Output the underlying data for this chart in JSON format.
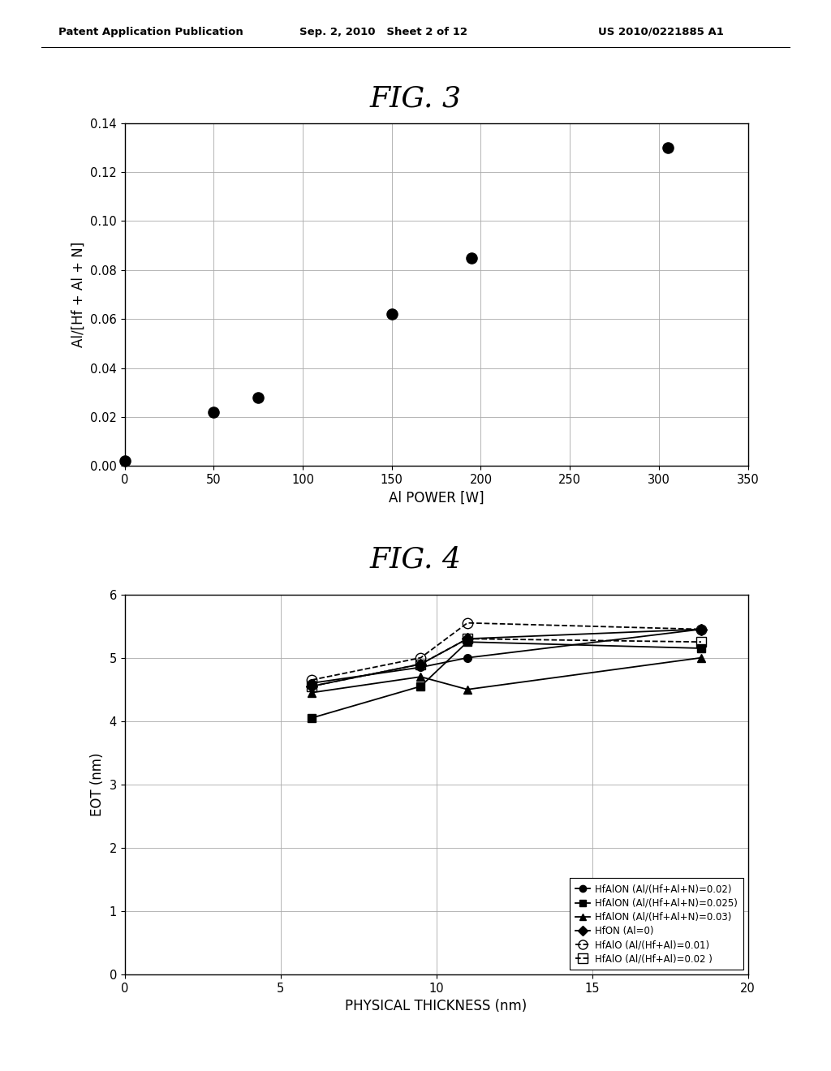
{
  "header_left": "Patent Application Publication",
  "header_center": "Sep. 2, 2010   Sheet 2 of 12",
  "header_right": "US 2010/0221885 A1",
  "fig3_title": "FIG. 3",
  "fig3_xlabel": "Al POWER [W]",
  "fig3_ylabel": "Al/[Hf + Al + N]",
  "fig3_xlim": [
    0,
    350
  ],
  "fig3_ylim": [
    0,
    0.14
  ],
  "fig3_xticks": [
    0,
    50,
    100,
    150,
    200,
    250,
    300,
    350
  ],
  "fig3_yticks": [
    0,
    0.02,
    0.04,
    0.06,
    0.08,
    0.1,
    0.12,
    0.14
  ],
  "fig3_data_x": [
    0,
    50,
    75,
    150,
    195,
    305
  ],
  "fig3_data_y": [
    0.002,
    0.022,
    0.028,
    0.062,
    0.085,
    0.13
  ],
  "fig4_title": "FIG. 4",
  "fig4_xlabel": "PHYSICAL THICKNESS (nm)",
  "fig4_ylabel": "EOT (nm)",
  "fig4_xlim": [
    0,
    20
  ],
  "fig4_ylim": [
    0,
    6
  ],
  "fig4_xticks": [
    0,
    5,
    10,
    15,
    20
  ],
  "fig4_yticks": [
    0,
    1,
    2,
    3,
    4,
    5,
    6
  ],
  "series": [
    {
      "label": "HfAlON (Al/(Hf+Al+N)=0.02)",
      "x": [
        6.0,
        9.5,
        11.0,
        18.5
      ],
      "y": [
        4.6,
        4.85,
        5.0,
        5.45
      ],
      "marker": "o",
      "fillstyle": "full",
      "linestyle": "-",
      "markersize": 7
    },
    {
      "label": "HfAlON (Al/(Hf+Al+N)=0.025)",
      "x": [
        6.0,
        9.5,
        11.0,
        18.5
      ],
      "y": [
        4.05,
        4.55,
        5.25,
        5.15
      ],
      "marker": "s",
      "fillstyle": "full",
      "linestyle": "-",
      "markersize": 7
    },
    {
      "label": "HfAlON (Al/(Hf+Al+N)=0.03)",
      "x": [
        6.0,
        9.5,
        11.0,
        18.5
      ],
      "y": [
        4.45,
        4.7,
        4.5,
        5.0
      ],
      "marker": "^",
      "fillstyle": "full",
      "linestyle": "-",
      "markersize": 7
    },
    {
      "label": "HfON (Al=0)",
      "x": [
        6.0,
        9.5,
        11.0,
        18.5
      ],
      "y": [
        4.55,
        4.9,
        5.3,
        5.45
      ],
      "marker": "D",
      "fillstyle": "full",
      "linestyle": "-",
      "markersize": 7
    },
    {
      "label": "HfAlO (Al/(Hf+Al)=0.01)",
      "x": [
        6.0,
        9.5,
        11.0,
        18.5
      ],
      "y": [
        4.65,
        5.0,
        5.55,
        5.45
      ],
      "marker": "o",
      "fillstyle": "none",
      "linestyle": "--",
      "markersize": 9
    },
    {
      "label": "HfAlO (Al/(Hf+Al)=0.02 )",
      "x": [
        6.0,
        9.5,
        11.0,
        18.5
      ],
      "y": [
        4.55,
        4.9,
        5.3,
        5.25
      ],
      "marker": "s",
      "fillstyle": "none",
      "linestyle": "--",
      "markersize": 9
    }
  ],
  "background_color": "#ffffff"
}
